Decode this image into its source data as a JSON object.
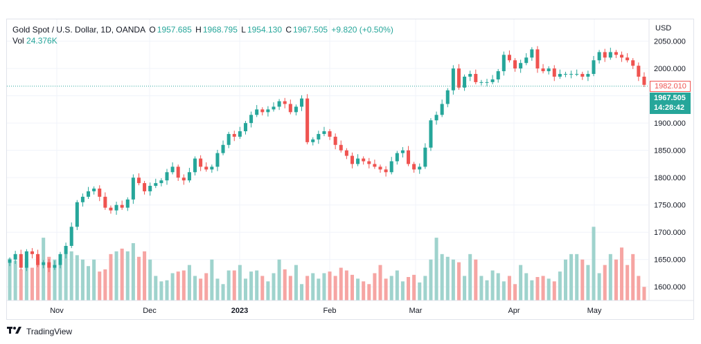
{
  "legend": {
    "title": "Gold Spot / U.S. Dollar, 1D, OANDA",
    "o_label": "O",
    "o_value": "1957.685",
    "h_label": "H",
    "h_value": "1968.795",
    "l_label": "L",
    "l_value": "1954.130",
    "c_label": "C",
    "c_value": "1967.505",
    "change": "+9.820 (+0.50%)",
    "vol_label": "Vol",
    "vol_value": "24.376K"
  },
  "currency": "USD",
  "price_tags": {
    "high_line": "1982.010",
    "last_price": "1967.505",
    "countdown": "14:28:42"
  },
  "footer": {
    "brand": "TradingView",
    "logo": "tradingview-logo"
  },
  "colors": {
    "up": "#26a69a",
    "down": "#ef5350",
    "vol_up": "#9fd3cd",
    "vol_down": "#f6a5a3"
  },
  "chart_data": {
    "type": "candlestick",
    "title": "Gold Spot / U.S. Dollar, 1D, OANDA",
    "y_ticks": [
      "1600.000",
      "1650.000",
      "1700.000",
      "1750.000",
      "1800.000",
      "1850.000",
      "1900.000",
      "1950.000",
      "2000.000",
      "2050.000"
    ],
    "x_ticks": [
      {
        "label": "Nov",
        "bold": false
      },
      {
        "label": "Dec",
        "bold": false
      },
      {
        "label": "2023",
        "bold": true
      },
      {
        "label": "Feb",
        "bold": false
      },
      {
        "label": "Mar",
        "bold": false
      },
      {
        "label": "Apr",
        "bold": false
      },
      {
        "label": "May",
        "bold": false
      }
    ],
    "ylim": [
      1575,
      2090
    ],
    "grid": true,
    "close_path": [
      1650,
      1660,
      1635,
      1665,
      1660,
      1640,
      1645,
      1635,
      1640,
      1660,
      1675,
      1710,
      1755,
      1765,
      1775,
      1780,
      1765,
      1745,
      1740,
      1750,
      1745,
      1760,
      1800,
      1790,
      1775,
      1785,
      1790,
      1795,
      1810,
      1820,
      1800,
      1795,
      1810,
      1835,
      1820,
      1815,
      1820,
      1845,
      1860,
      1880,
      1875,
      1885,
      1900,
      1915,
      1925,
      1920,
      1925,
      1930,
      1940,
      1935,
      1920,
      1930,
      1945,
      1865,
      1870,
      1880,
      1885,
      1875,
      1860,
      1850,
      1840,
      1825,
      1835,
      1830,
      1825,
      1820,
      1815,
      1810,
      1830,
      1845,
      1850,
      1825,
      1815,
      1820,
      1855,
      1905,
      1915,
      1935,
      1960,
      2000,
      1965,
      1985,
      1990,
      1975,
      1975,
      1975,
      1980,
      1995,
      2025,
      2015,
      2000,
      2010,
      2020,
      2035,
      2000,
      1995,
      2000,
      1985,
      1990,
      1990,
      1990,
      1990,
      1985,
      1990,
      2015,
      2030,
      2020,
      2030,
      2025,
      2020,
      2015,
      2005,
      1985,
      1970
    ],
    "volume": [
      1652,
      1648,
      1632,
      1645,
      1635,
      1655,
      1690,
      1655,
      1650,
      1640,
      1660,
      1665,
      1658,
      1650,
      1638,
      1650,
      1628,
      1632,
      1660,
      1665,
      1670,
      1665,
      1680,
      1655,
      1665,
      1650,
      1620,
      1610,
      1612,
      1625,
      1628,
      1630,
      1640,
      1620,
      1615,
      1625,
      1650,
      1615,
      1605,
      1630,
      1630,
      1640,
      1615,
      1628,
      1630,
      1620,
      1610,
      1625,
      1650,
      1632,
      1620,
      1640,
      1605,
      1620,
      1625,
      1615,
      1625,
      1628,
      1620,
      1635,
      1630,
      1622,
      1615,
      1610,
      1605,
      1625,
      1640,
      1615,
      1620,
      1630,
      1610,
      1618,
      1622,
      1608,
      1620,
      1650,
      1690,
      1660,
      1655,
      1650,
      1645,
      1620,
      1660,
      1650,
      1620,
      1612,
      1630,
      1625,
      1610,
      1620,
      1605,
      1640,
      1625,
      1612,
      1618,
      1620,
      1615,
      1610,
      1628,
      1650,
      1660,
      1660,
      1650,
      1640,
      1710,
      1625,
      1640,
      1660,
      1650,
      1672,
      1640,
      1660,
      1620,
      1600
    ],
    "volume_scale_note": "Volume bars on lower pane; values relative"
  }
}
